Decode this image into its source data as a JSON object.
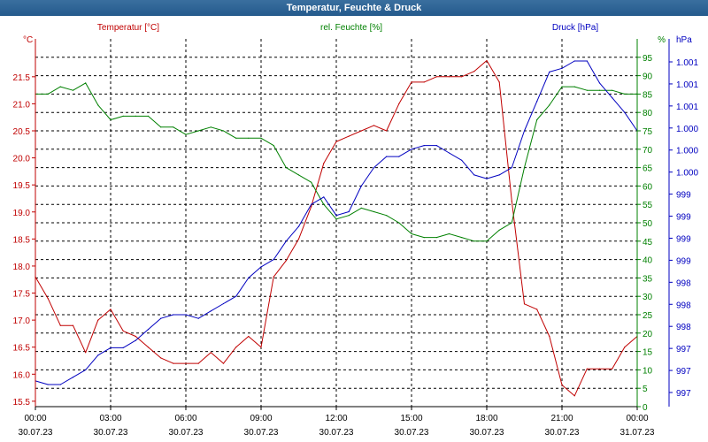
{
  "window": {
    "title": "Temperatur, Feuchte & Druck"
  },
  "colors": {
    "temperature": "#c00000",
    "humidity": "#008000",
    "pressure": "#0000c0",
    "grid": "#000000"
  },
  "chart_data": {
    "type": "line",
    "title": "Temperatur, Feuchte & Druck",
    "grid": true,
    "x_ticks": [
      {
        "time": "00:00",
        "date": "30.07.23"
      },
      {
        "time": "03:00",
        "date": "30.07.23"
      },
      {
        "time": "06:00",
        "date": "30.07.23"
      },
      {
        "time": "09:00",
        "date": "30.07.23"
      },
      {
        "time": "12:00",
        "date": "30.07.23"
      },
      {
        "time": "15:00",
        "date": "30.07.23"
      },
      {
        "time": "18:00",
        "date": "30.07.23"
      },
      {
        "time": "21:00",
        "date": "30.07.23"
      },
      {
        "time": "00:00",
        "date": "31.07.23"
      }
    ],
    "x_hours": [
      0,
      0.5,
      1,
      1.5,
      2,
      2.5,
      3,
      3.5,
      4,
      4.5,
      5,
      5.5,
      6,
      6.5,
      7,
      7.5,
      8,
      8.5,
      9,
      9.5,
      10,
      10.5,
      11,
      11.5,
      12,
      12.5,
      13,
      13.5,
      14,
      14.5,
      15,
      15.5,
      16,
      16.5,
      17,
      17.5,
      18,
      18.5,
      19,
      19.5,
      20,
      20.5,
      21,
      21.5,
      22,
      22.5,
      23,
      23.5,
      24
    ],
    "axes": {
      "temperature": {
        "label": "Temperatur [°C]",
        "unit": "°C",
        "range": [
          15.4,
          22.2
        ],
        "ticks": [
          "15.5",
          "16.0",
          "16.5",
          "17.0",
          "17.5",
          "18.0",
          "18.5",
          "19.0",
          "19.5",
          "20.0",
          "20.5",
          "21.0",
          "21.5"
        ]
      },
      "humidity": {
        "label": "rel. Feuchte [%]",
        "unit": "%",
        "range": [
          0,
          100
        ],
        "ticks": [
          "0",
          "5",
          "10",
          "15",
          "20",
          "25",
          "30",
          "35",
          "40",
          "45",
          "50",
          "55",
          "60",
          "65",
          "70",
          "75",
          "80",
          "85",
          "90",
          "95"
        ]
      },
      "pressure": {
        "label": "Druck [hPa]",
        "unit": "hPa",
        "range": [
          0,
          100
        ],
        "ticks": [
          "997",
          "997",
          "997",
          "998",
          "998",
          "998",
          "999",
          "999",
          "999",
          "999",
          "1.000",
          "1.000",
          "1.000",
          "1.001",
          "1.001",
          "1.001"
        ]
      }
    },
    "series": [
      {
        "name": "Temperatur [°C]",
        "axis": "temperature",
        "values": [
          17.8,
          17.4,
          16.9,
          16.9,
          16.4,
          17.0,
          17.2,
          16.8,
          16.7,
          16.5,
          16.3,
          16.2,
          16.2,
          16.2,
          16.4,
          16.2,
          16.5,
          16.7,
          16.5,
          17.8,
          18.1,
          18.5,
          19.1,
          19.9,
          20.3,
          20.4,
          20.5,
          20.6,
          20.5,
          21.0,
          21.4,
          21.4,
          21.5,
          21.5,
          21.5,
          21.6,
          21.8,
          21.4,
          19.2,
          17.3,
          17.2,
          16.7,
          15.8,
          15.6,
          16.1,
          16.1,
          16.1,
          16.5,
          16.7
        ]
      },
      {
        "name": "rel. Feuchte [%]",
        "axis": "humidity",
        "values": [
          85,
          85,
          87,
          86,
          88,
          82,
          78,
          79,
          79,
          79,
          76,
          76,
          74,
          75,
          76,
          75,
          73,
          73,
          73,
          71,
          65,
          63,
          61,
          55,
          51,
          52,
          54,
          53,
          52,
          50,
          47,
          46,
          46,
          47,
          46,
          45,
          45,
          48,
          50,
          65,
          78,
          82,
          87,
          87,
          86,
          86,
          86,
          85,
          85
        ]
      },
      {
        "name": "Druck [hPa]",
        "axis": "pressure",
        "values": [
          7,
          6,
          6,
          8,
          10,
          14,
          16,
          16,
          18,
          21,
          24,
          25,
          25,
          24,
          26,
          28,
          30,
          35,
          38,
          40,
          45,
          49,
          55,
          57,
          52,
          53,
          60,
          65,
          68,
          68,
          70,
          71,
          71,
          69,
          67,
          63,
          62,
          63,
          65,
          75,
          83,
          91,
          92,
          94,
          94,
          88,
          84,
          80,
          75
        ]
      }
    ]
  }
}
